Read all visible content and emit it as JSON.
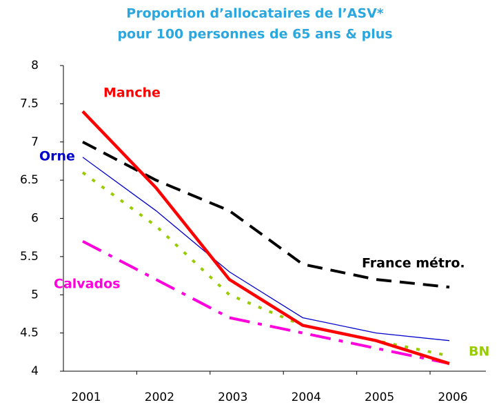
{
  "chart_data": {
    "type": "line",
    "title": [
      "Proportion d’allocataires de l’ASV*",
      "pour 100 personnes de 65 ans & plus"
    ],
    "categories": [
      "2001",
      "2002",
      "2003",
      "2004",
      "2005",
      "2006"
    ],
    "series": [
      {
        "name": "France métro.",
        "color": "#000000",
        "values": [
          7.0,
          6.5,
          6.1,
          5.4,
          5.2,
          5.1
        ]
      },
      {
        "name": "Orne",
        "color": "#0000cc",
        "values": [
          6.8,
          6.1,
          5.3,
          4.7,
          4.5,
          4.4
        ]
      },
      {
        "name": "BN",
        "color": "#99cc00",
        "values": [
          6.6,
          5.9,
          5.0,
          4.6,
          4.4,
          4.2
        ]
      },
      {
        "name": "Calvados",
        "color": "#ff00dd",
        "values": [
          5.7,
          5.2,
          4.7,
          4.5,
          4.3,
          4.1
        ]
      },
      {
        "name": "Manche",
        "color": "#ff0000",
        "values": [
          7.4,
          6.4,
          5.2,
          4.6,
          4.4,
          4.1
        ]
      }
    ],
    "ylim": [
      4,
      8
    ],
    "yticks": [
      4,
      4.5,
      5,
      5.5,
      6,
      6.5,
      7,
      7.5,
      8
    ],
    "grid": false
  }
}
